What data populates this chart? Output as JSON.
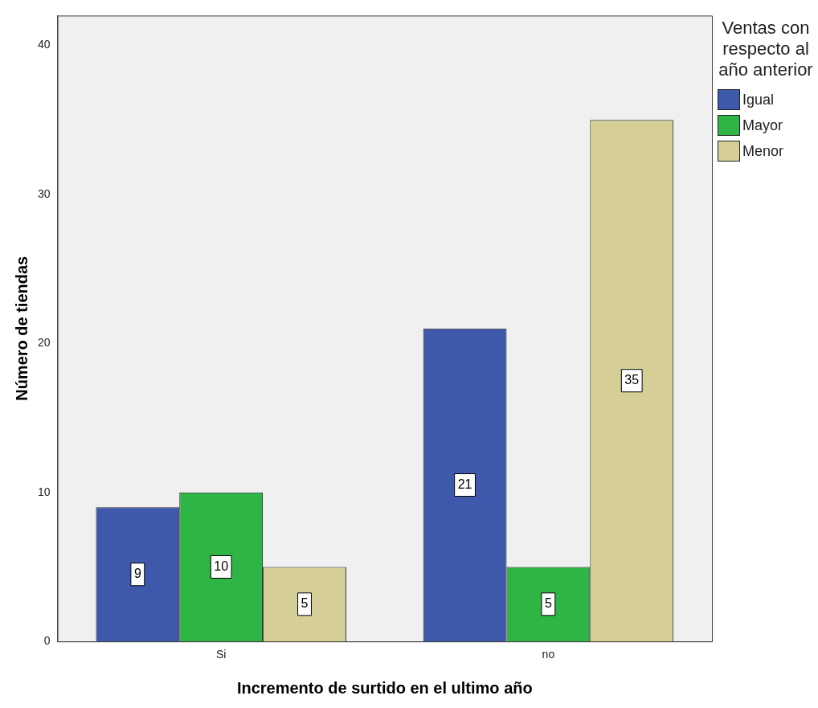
{
  "chart_data": {
    "type": "bar",
    "xlabel": "Incremento de surtido en el ultimo año",
    "ylabel": "Número de tiendas",
    "legend_title": "Ventas con respecto al año anterior",
    "categories": [
      "Si",
      "no"
    ],
    "series": [
      {
        "name": "Igual",
        "color": "#3e58ac",
        "values": [
          9,
          21
        ]
      },
      {
        "name": "Mayor",
        "color": "#2fb545",
        "values": [
          10,
          5
        ]
      },
      {
        "name": "Menor",
        "color": "#d5cf97",
        "values": [
          5,
          35
        ]
      }
    ],
    "ylim": [
      0,
      42
    ],
    "yticks": [
      0,
      10,
      20,
      30,
      40
    ],
    "grid": false,
    "legend": "right",
    "data_labels": true
  }
}
